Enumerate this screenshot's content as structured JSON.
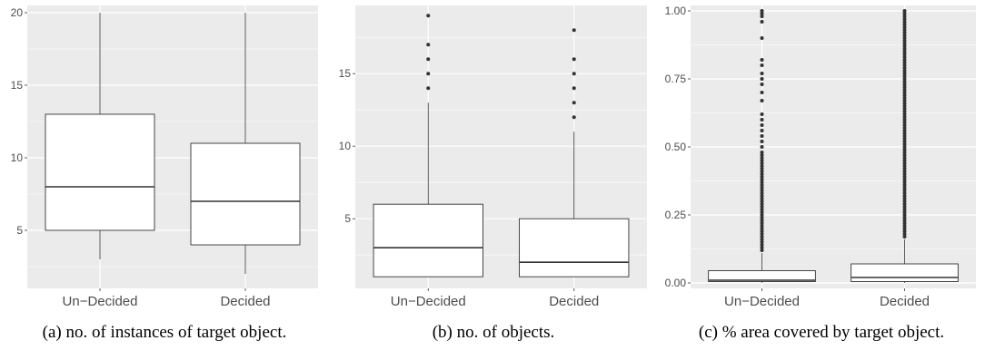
{
  "theme": {
    "panel_bg": "#ebebeb",
    "grid": "#ffffff",
    "box_fill": "#ffffff",
    "line": "#333333",
    "text": "#4d4d4d"
  },
  "captions": [
    "(a) no. of instances of target object.",
    "(b) no. of objects.",
    "(c) % area covered by target object."
  ],
  "chart_data": [
    {
      "type": "box",
      "title": "",
      "xlabel": "",
      "ylabel": "",
      "categories": [
        "Un−Decided",
        "Decided"
      ],
      "ylim": [
        1,
        20.5
      ],
      "yticks": [
        5,
        10,
        15,
        20
      ],
      "ytick_labels": [
        "5",
        "10",
        "15",
        "20"
      ],
      "grid": true,
      "boxes": [
        {
          "name": "Un−Decided",
          "whisker_low": 3,
          "q1": 5,
          "median": 8,
          "q3": 13,
          "whisker_high": 20,
          "outliers": []
        },
        {
          "name": "Decided",
          "whisker_low": 2,
          "q1": 4,
          "median": 7,
          "q3": 11,
          "whisker_high": 20,
          "outliers": []
        }
      ]
    },
    {
      "type": "box",
      "title": "",
      "xlabel": "",
      "ylabel": "",
      "categories": [
        "Un−Decided",
        "Decided"
      ],
      "ylim": [
        0.2,
        19.7
      ],
      "yticks": [
        5,
        10,
        15
      ],
      "ytick_labels": [
        "5",
        "10",
        "15"
      ],
      "grid": true,
      "boxes": [
        {
          "name": "Un−Decided",
          "whisker_low": 1,
          "q1": 1,
          "median": 3,
          "q3": 6,
          "whisker_high": 13,
          "outliers": [
            14,
            15,
            16,
            17,
            19
          ]
        },
        {
          "name": "Decided",
          "whisker_low": 1,
          "q1": 1,
          "median": 2,
          "q3": 5,
          "whisker_high": 11,
          "outliers": [
            12,
            13,
            14,
            15,
            16,
            18
          ]
        }
      ]
    },
    {
      "type": "box",
      "title": "",
      "xlabel": "",
      "ylabel": "",
      "categories": [
        "Un−Decided",
        "Decided"
      ],
      "ylim": [
        -0.02,
        1.02
      ],
      "yticks": [
        0,
        0.25,
        0.5,
        0.75,
        1
      ],
      "ytick_labels": [
        "0.00",
        "0.25",
        "0.50",
        "0.75",
        "1.00"
      ],
      "grid": true,
      "boxes": [
        {
          "name": "Un−Decided",
          "whisker_low": 0,
          "q1": 0.005,
          "median": 0.01,
          "q3": 0.045,
          "whisker_high": 0.11,
          "outliers": [
            0.12,
            0.13,
            0.14,
            0.15,
            0.16,
            0.17,
            0.18,
            0.19,
            0.2,
            0.21,
            0.22,
            0.23,
            0.24,
            0.25,
            0.26,
            0.27,
            0.28,
            0.29,
            0.3,
            0.31,
            0.32,
            0.33,
            0.34,
            0.35,
            0.36,
            0.37,
            0.38,
            0.39,
            0.4,
            0.41,
            0.42,
            0.43,
            0.44,
            0.45,
            0.46,
            0.47,
            0.48,
            0.5,
            0.52,
            0.54,
            0.56,
            0.58,
            0.6,
            0.62,
            0.67,
            0.7,
            0.73,
            0.75,
            0.77,
            0.8,
            0.82,
            0.9,
            0.96,
            0.98,
            0.99,
            1.0
          ]
        },
        {
          "name": "Decided",
          "whisker_low": 0,
          "q1": 0.005,
          "median": 0.02,
          "q3": 0.07,
          "whisker_high": 0.16,
          "outliers": [
            0.17,
            0.18,
            0.19,
            0.2,
            0.21,
            0.22,
            0.23,
            0.24,
            0.25,
            0.26,
            0.27,
            0.28,
            0.29,
            0.3,
            0.31,
            0.32,
            0.33,
            0.34,
            0.35,
            0.36,
            0.37,
            0.38,
            0.39,
            0.4,
            0.41,
            0.42,
            0.43,
            0.44,
            0.45,
            0.46,
            0.47,
            0.48,
            0.49,
            0.5,
            0.51,
            0.52,
            0.53,
            0.54,
            0.55,
            0.56,
            0.57,
            0.58,
            0.59,
            0.6,
            0.61,
            0.62,
            0.63,
            0.64,
            0.65,
            0.66,
            0.67,
            0.68,
            0.69,
            0.7,
            0.71,
            0.72,
            0.73,
            0.74,
            0.75,
            0.76,
            0.77,
            0.78,
            0.79,
            0.8,
            0.81,
            0.82,
            0.83,
            0.84,
            0.85,
            0.86,
            0.87,
            0.88,
            0.89,
            0.9,
            0.91,
            0.92,
            0.93,
            0.94,
            0.95,
            0.96,
            0.97,
            0.98,
            0.99,
            1.0
          ]
        }
      ]
    }
  ]
}
